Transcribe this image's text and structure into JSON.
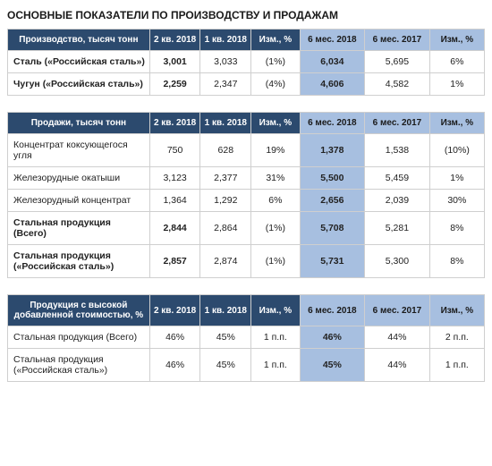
{
  "title": "ОСНОВНЫЕ ПОКАЗАТЕЛИ ПО ПРОИЗВОДСТВУ И ПРОДАЖАМ",
  "shared_columns": {
    "c1": "2 кв. 2018",
    "c2": "1 кв. 2018",
    "c3": "Изм., %",
    "c4": "6 мес. 2018",
    "c5": "6 мес. 2017",
    "c6": "Изм., %"
  },
  "table1": {
    "header_label": "Производство, тысяч тонн",
    "rows": [
      {
        "label": "Сталь («Российская сталь»)",
        "q2": "3,001",
        "q1": "3,033",
        "chg": "(1%)",
        "h1_18": "6,034",
        "h1_17": "5,695",
        "yoy": "6%",
        "bold": true
      },
      {
        "label": "Чугун («Российская сталь»)",
        "q2": "2,259",
        "q1": "2,347",
        "chg": "(4%)",
        "h1_18": "4,606",
        "h1_17": "4,582",
        "yoy": "1%",
        "bold": true
      }
    ]
  },
  "table2": {
    "header_label": "Продажи, тысяч тонн",
    "rows": [
      {
        "label": "Концентрат коксующегося угля",
        "q2": "750",
        "q1": "628",
        "chg": "19%",
        "h1_18": "1,378",
        "h1_17": "1,538",
        "yoy": "(10%)",
        "bold": false
      },
      {
        "label": "Железорудные окатыши",
        "q2": "3,123",
        "q1": "2,377",
        "chg": "31%",
        "h1_18": "5,500",
        "h1_17": "5,459",
        "yoy": "1%",
        "bold": false
      },
      {
        "label": "Железорудный концентрат",
        "q2": "1,364",
        "q1": "1,292",
        "chg": "6%",
        "h1_18": "2,656",
        "h1_17": "2,039",
        "yoy": "30%",
        "bold": false
      },
      {
        "label": "Стальная продукция (Всего)",
        "q2": "2,844",
        "q1": "2,864",
        "chg": "(1%)",
        "h1_18": "5,708",
        "h1_17": "5,281",
        "yoy": "8%",
        "bold": true
      },
      {
        "label": "Стальная продукция («Российская сталь»)",
        "q2": "2,857",
        "q1": "2,874",
        "chg": "(1%)",
        "h1_18": "5,731",
        "h1_17": "5,300",
        "yoy": "8%",
        "bold": true
      }
    ]
  },
  "table3": {
    "header_label": "Продукция с высокой добавленной стоимостью, %",
    "rows": [
      {
        "label": "Стальная продукция (Всего)",
        "q2": "46%",
        "q1": "45%",
        "chg": "1 п.п.",
        "h1_18": "46%",
        "h1_17": "44%",
        "yoy": "2 п.п.",
        "bold": false
      },
      {
        "label": "Стальная продукция («Российская сталь»)",
        "q2": "46%",
        "q1": "45%",
        "chg": "1 п.п.",
        "h1_18": "45%",
        "h1_17": "44%",
        "yoy": "1 п.п.",
        "bold": false
      }
    ]
  }
}
